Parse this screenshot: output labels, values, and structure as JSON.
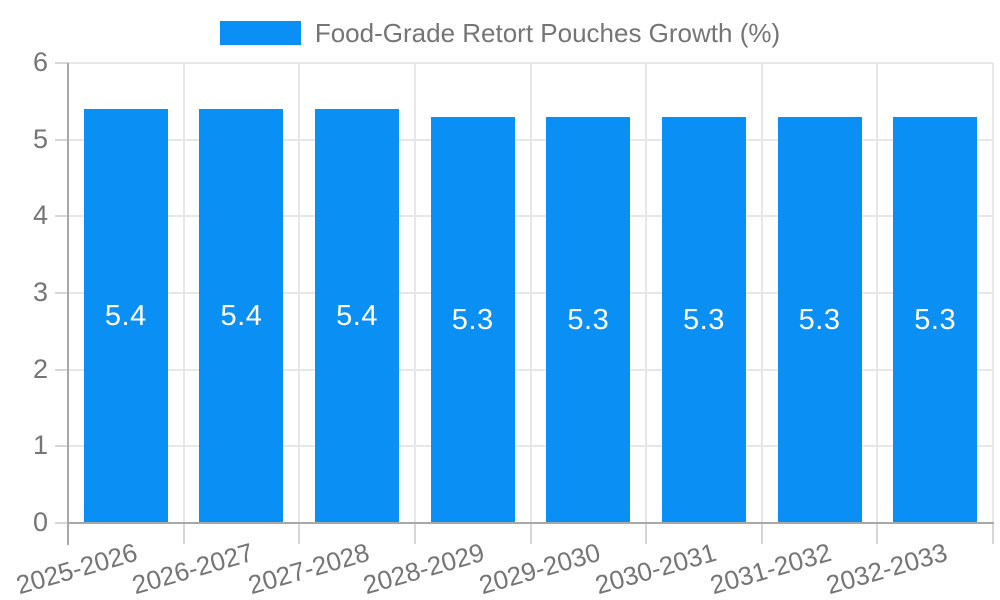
{
  "chart_data": {
    "type": "bar",
    "title": "Food-Grade Retort Pouches Growth (%)",
    "categories": [
      "2025-2026",
      "2026-2027",
      "2027-2028",
      "2028-2029",
      "2029-2030",
      "2030-2031",
      "2031-2032",
      "2032-2033"
    ],
    "values": [
      5.4,
      5.4,
      5.4,
      5.3,
      5.3,
      5.3,
      5.3,
      5.3
    ],
    "value_labels": [
      "5.4",
      "5.4",
      "5.4",
      "5.3",
      "5.3",
      "5.3",
      "5.3",
      "5.3"
    ],
    "xlabel": "",
    "ylabel": "",
    "ylim": [
      0,
      6
    ],
    "yticks": [
      0,
      1,
      2,
      3,
      4,
      5,
      6
    ],
    "grid": true,
    "legend_position": "top",
    "value_labels_position": "inside-center"
  },
  "legend": {
    "label": "Food-Grade Retort Pouches Growth (%)"
  },
  "colors": {
    "bar": "#0a90f5",
    "grid": "#e7e7e7",
    "axis": "#a8a8a8",
    "tick": "#d6d6d6",
    "text": "#757575",
    "value_text": "#ffffff",
    "background": "#ffffff"
  }
}
